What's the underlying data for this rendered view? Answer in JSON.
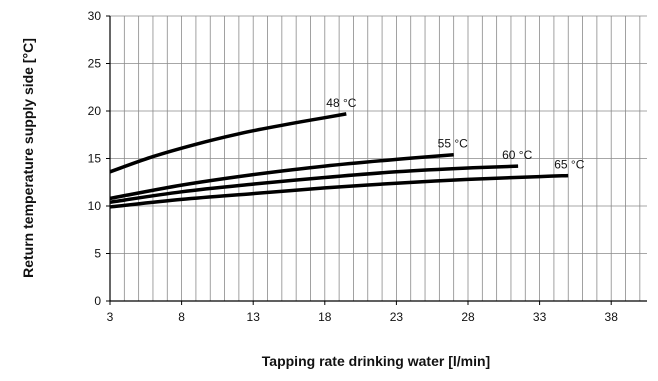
{
  "chart_data": {
    "type": "line",
    "title": "",
    "xlabel": "Tapping rate drinking water [l/min]",
    "ylabel": "Return temperature supply side  [°C]",
    "xlim": [
      3,
      40.5
    ],
    "ylim": [
      0,
      30
    ],
    "x_ticks": [
      3,
      8,
      13,
      18,
      23,
      28,
      33,
      38
    ],
    "y_ticks": [
      0,
      5,
      10,
      15,
      20,
      25,
      30
    ],
    "grid": {
      "vertical_step": 1,
      "horizontal_step": 5
    },
    "series_color": "#000000",
    "series": [
      {
        "name": "48 °C",
        "x": [
          3,
          6,
          9,
          12,
          15,
          18,
          19.5
        ],
        "y": [
          13.6,
          15.2,
          16.5,
          17.6,
          18.5,
          19.3,
          19.7
        ]
      },
      {
        "name": "55 °C",
        "x": [
          3,
          8,
          13,
          18,
          23,
          27
        ],
        "y": [
          10.8,
          12.2,
          13.3,
          14.2,
          14.9,
          15.4
        ]
      },
      {
        "name": "60 °C",
        "x": [
          3,
          8,
          13,
          18,
          23,
          28,
          31.5
        ],
        "y": [
          10.4,
          11.5,
          12.3,
          13.0,
          13.6,
          14.0,
          14.2
        ]
      },
      {
        "name": "65 °C",
        "x": [
          3,
          8,
          13,
          18,
          23,
          28,
          33,
          35
        ],
        "y": [
          9.9,
          10.7,
          11.3,
          11.9,
          12.4,
          12.8,
          13.1,
          13.2
        ]
      }
    ]
  }
}
